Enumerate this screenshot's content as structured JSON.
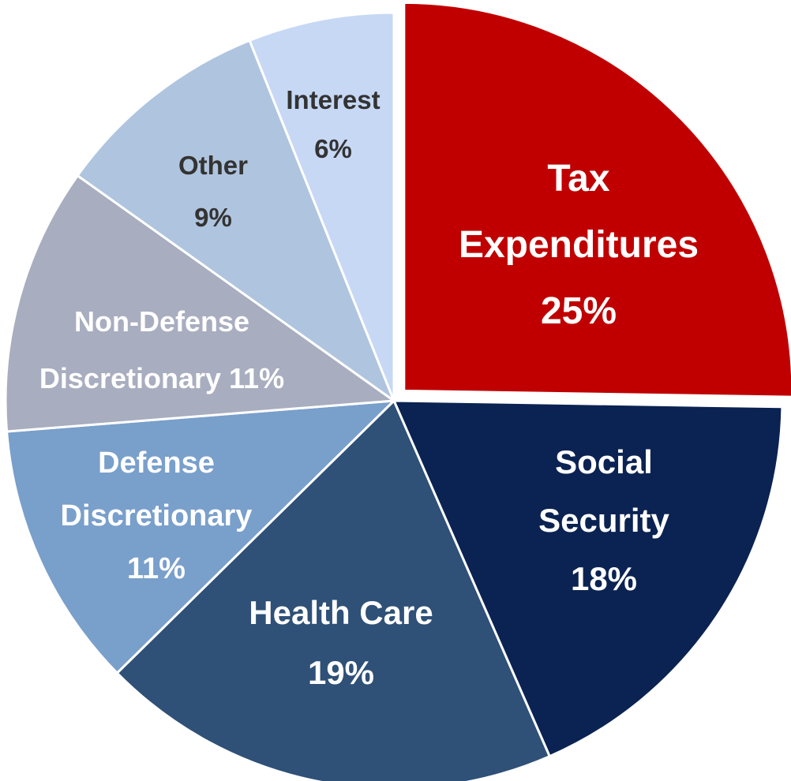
{
  "chart_data": {
    "type": "pie",
    "start_angle_deg": 0,
    "direction": "clockwise",
    "slices": [
      {
        "name": "Tax Expenditures",
        "label_lines": [
          "Tax",
          "Expenditures",
          "25%"
        ],
        "value": 25,
        "color": "#C00000",
        "label_color": "#FFFFFF",
        "exploded": true
      },
      {
        "name": "Social Security",
        "label_lines": [
          "Social",
          "Security",
          "18%"
        ],
        "value": 18,
        "color": "#0B2352",
        "label_color": "#FFFFFF",
        "exploded": false
      },
      {
        "name": "Health Care",
        "label_lines": [
          "Health Care",
          "19%"
        ],
        "value": 19,
        "color": "#2F5077",
        "label_color": "#FFFFFF",
        "exploded": false
      },
      {
        "name": "Defense Discretionary",
        "label_lines": [
          "Defense",
          "Discretionary",
          "11%"
        ],
        "value": 11,
        "color": "#799FCB",
        "label_color": "#FFFFFF",
        "exploded": false
      },
      {
        "name": "Non-Defense Discretionary",
        "label_lines": [
          "Non-Defense",
          "Discretionary 11%"
        ],
        "value": 11,
        "color": "#A8ADBF",
        "label_color": "#FFFFFF",
        "exploded": false
      },
      {
        "name": "Other",
        "label_lines": [
          "Other",
          "9%"
        ],
        "value": 9,
        "color": "#AFC4DE",
        "label_color": "#333333",
        "exploded": false
      },
      {
        "name": "Interest",
        "label_lines": [
          "Interest",
          "6%"
        ],
        "value": 6,
        "color": "#C6D8F4",
        "label_color": "#333333",
        "exploded": false
      }
    ]
  }
}
